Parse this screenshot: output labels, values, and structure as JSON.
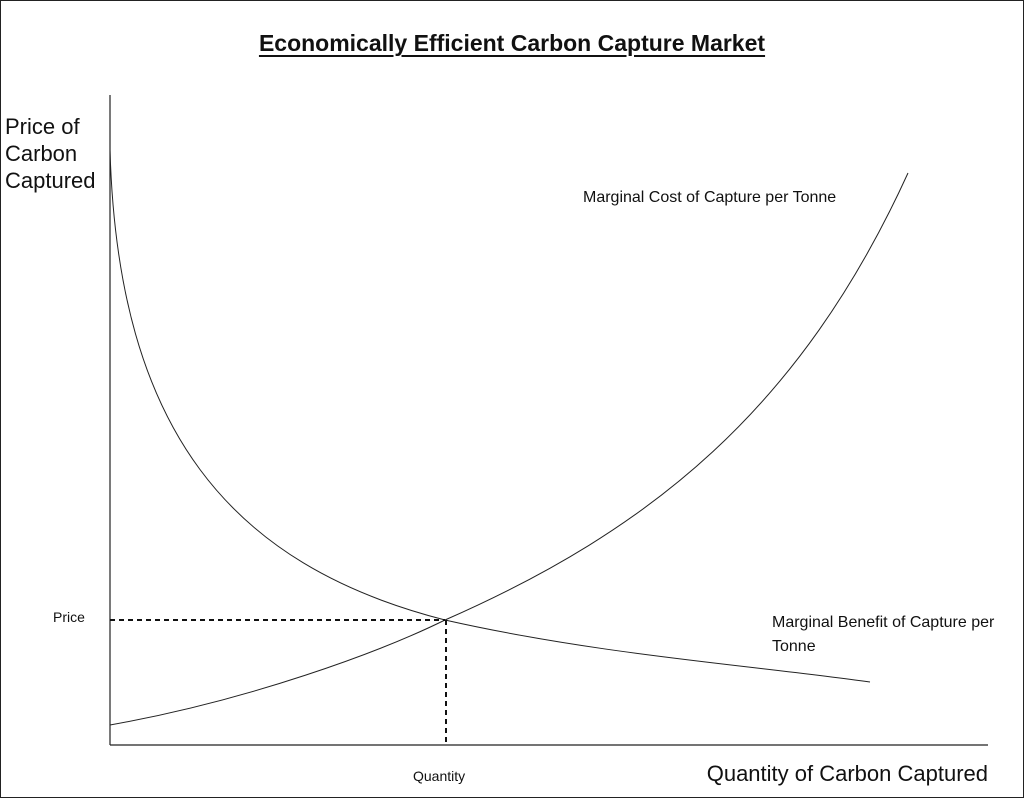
{
  "title": "Economically Efficient Carbon Capture Market",
  "y_axis_label": "Price of Carbon Captured",
  "x_axis_label": "Quantity of Carbon Captured",
  "curves": [
    {
      "label": "Marginal Cost of Capture per Tonne"
    },
    {
      "label": "Marginal Benefit of Capture per Tonne"
    }
  ],
  "equilibrium": {
    "price_label": "Price",
    "quantity_label": "Quantity"
  }
}
